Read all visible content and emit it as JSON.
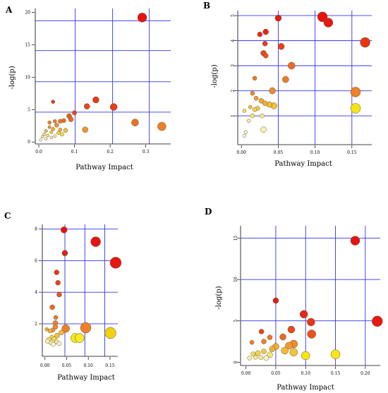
{
  "chart_data": [
    {
      "panel": "A",
      "type": "scatter",
      "xlabel": "Pathway Impact",
      "ylabel": "-log(p)",
      "xlim": [
        -0.01,
        0.37
      ],
      "ylim": [
        -0.3,
        20.6
      ],
      "xticks": [
        "0.0",
        "0.1",
        "0.2",
        "0.3"
      ],
      "xtick_values": [
        0.0,
        0.1,
        0.2,
        0.3
      ],
      "yticks": [
        "0",
        "5",
        "10",
        "15",
        "20"
      ],
      "ytick_values": [
        0,
        5,
        10,
        15,
        20
      ],
      "vgrid": [
        0.102,
        0.207,
        0.31
      ],
      "hgrid": [
        4.6,
        9.3,
        14.1,
        18.7
      ],
      "grid": true,
      "color_scale": "yellow (low -log(p)) to red (high -log(p))",
      "points": [
        {
          "x": 0.29,
          "y": 19.2,
          "r": 6.5,
          "color": "#e8120f"
        },
        {
          "x": 0.16,
          "y": 6.5,
          "r": 4.5,
          "color": "#e93a12"
        },
        {
          "x": 0.21,
          "y": 5.4,
          "r": 5.0,
          "color": "#ea3d13"
        },
        {
          "x": 0.135,
          "y": 5.5,
          "r": 4.0,
          "color": "#ea4416"
        },
        {
          "x": 0.04,
          "y": 6.2,
          "r": 2.5,
          "color": "#e93a12"
        },
        {
          "x": 0.1,
          "y": 4.5,
          "r": 3.2,
          "color": "#ea4a18"
        },
        {
          "x": 0.085,
          "y": 4.0,
          "r": 3.5,
          "color": "#ec5a1a"
        },
        {
          "x": 0.09,
          "y": 3.5,
          "r": 3.5,
          "color": "#ee661c"
        },
        {
          "x": 0.07,
          "y": 3.3,
          "r": 3.0,
          "color": "#ee6f1d"
        },
        {
          "x": 0.06,
          "y": 3.2,
          "r": 3.0,
          "color": "#ef7220"
        },
        {
          "x": 0.045,
          "y": 3.2,
          "r": 2.5,
          "color": "#ef7a22"
        },
        {
          "x": 0.03,
          "y": 3.0,
          "r": 2.5,
          "color": "#f08024"
        },
        {
          "x": 0.05,
          "y": 2.6,
          "r": 3.0,
          "color": "#f18a26"
        },
        {
          "x": 0.03,
          "y": 2.3,
          "r": 2.2,
          "color": "#f29a28"
        },
        {
          "x": 0.04,
          "y": 2.0,
          "r": 2.5,
          "color": "#f4aa2a"
        },
        {
          "x": 0.06,
          "y": 1.9,
          "r": 2.5,
          "color": "#f5b02c"
        },
        {
          "x": 0.02,
          "y": 1.7,
          "r": 2.2,
          "color": "#f6bb30"
        },
        {
          "x": 0.075,
          "y": 1.8,
          "r": 3.0,
          "color": "#f7c232"
        },
        {
          "x": 0.035,
          "y": 1.5,
          "r": 2.2,
          "color": "#f8cc38"
        },
        {
          "x": 0.055,
          "y": 1.4,
          "r": 2.5,
          "color": "#f9d640"
        },
        {
          "x": 0.065,
          "y": 1.2,
          "r": 2.8,
          "color": "#fae04a"
        },
        {
          "x": 0.015,
          "y": 1.2,
          "r": 2.0,
          "color": "#fbe45a"
        },
        {
          "x": 0.025,
          "y": 1.0,
          "r": 2.0,
          "color": "#fbe86a"
        },
        {
          "x": 0.045,
          "y": 0.9,
          "r": 2.2,
          "color": "#fcec80"
        },
        {
          "x": 0.01,
          "y": 0.8,
          "r": 2.0,
          "color": "#fcef90"
        },
        {
          "x": 0.035,
          "y": 0.7,
          "r": 2.0,
          "color": "#fdf2a8"
        },
        {
          "x": 0.02,
          "y": 0.5,
          "r": 2.0,
          "color": "#fdf5c0"
        },
        {
          "x": 0.005,
          "y": 0.3,
          "r": 1.8,
          "color": "#fef9dc"
        },
        {
          "x": 0.27,
          "y": 3.0,
          "r": 5.0,
          "color": "#ee6f1d"
        },
        {
          "x": 0.345,
          "y": 2.4,
          "r": 6.0,
          "color": "#f08024"
        },
        {
          "x": 0.13,
          "y": 1.9,
          "r": 4.0,
          "color": "#f2962a"
        }
      ]
    },
    {
      "panel": "B",
      "type": "scatter",
      "xlabel": "Pathway Impact",
      "ylabel": "-log(p)",
      "xlim": [
        -0.005,
        0.177
      ],
      "ylim": [
        -0.15,
        5.2
      ],
      "xticks": [
        "0.00",
        "0.05",
        "0.10",
        "0.15"
      ],
      "xtick_values": [
        0.0,
        0.05,
        0.1,
        0.15
      ],
      "yticks": [
        "1",
        "2",
        "3",
        "4",
        "5"
      ],
      "ytick_values": [
        1,
        2,
        3,
        4,
        5
      ],
      "vgrid": [
        0.05,
        0.1,
        0.15
      ],
      "hgrid": [
        1,
        2,
        3,
        4,
        5
      ],
      "grid": true,
      "color_scale": "yellow (low -log(p)) to red (high -log(p))",
      "points": [
        {
          "x": 0.11,
          "y": 4.95,
          "r": 7.0,
          "color": "#e8120f"
        },
        {
          "x": 0.118,
          "y": 4.72,
          "r": 6.5,
          "color": "#e81a10"
        },
        {
          "x": 0.05,
          "y": 4.9,
          "r": 4.5,
          "color": "#e81a10"
        },
        {
          "x": 0.168,
          "y": 3.93,
          "r": 7.0,
          "color": "#ea3512"
        },
        {
          "x": 0.033,
          "y": 4.35,
          "r": 4.0,
          "color": "#e92712"
        },
        {
          "x": 0.025,
          "y": 4.25,
          "r": 3.5,
          "color": "#e92c12"
        },
        {
          "x": 0.032,
          "y": 3.88,
          "r": 3.5,
          "color": "#ea3913"
        },
        {
          "x": 0.054,
          "y": 3.77,
          "r": 4.5,
          "color": "#eb4215"
        },
        {
          "x": 0.03,
          "y": 3.5,
          "r": 4.0,
          "color": "#eb4a17"
        },
        {
          "x": 0.033,
          "y": 3.4,
          "r": 3.5,
          "color": "#ec5218"
        },
        {
          "x": 0.068,
          "y": 3.0,
          "r": 5.0,
          "color": "#ee6a1c"
        },
        {
          "x": 0.06,
          "y": 2.45,
          "r": 4.5,
          "color": "#ef7a21"
        },
        {
          "x": 0.018,
          "y": 2.5,
          "r": 3.0,
          "color": "#ef7a21"
        },
        {
          "x": 0.042,
          "y": 2.0,
          "r": 4.5,
          "color": "#f18a26"
        },
        {
          "x": 0.155,
          "y": 1.95,
          "r": 7.0,
          "color": "#f08024"
        },
        {
          "x": 0.015,
          "y": 1.9,
          "r": 3.0,
          "color": "#f18a26"
        },
        {
          "x": 0.02,
          "y": 1.7,
          "r": 3.0,
          "color": "#f29a28"
        },
        {
          "x": 0.027,
          "y": 1.6,
          "r": 3.5,
          "color": "#f4aa2a"
        },
        {
          "x": 0.032,
          "y": 1.5,
          "r": 3.5,
          "color": "#f5b02c"
        },
        {
          "x": 0.038,
          "y": 1.45,
          "r": 4.0,
          "color": "#f6bb30"
        },
        {
          "x": 0.044,
          "y": 1.4,
          "r": 4.5,
          "color": "#f7c232"
        },
        {
          "x": 0.012,
          "y": 1.35,
          "r": 2.5,
          "color": "#f7c232"
        },
        {
          "x": 0.022,
          "y": 1.3,
          "r": 3.0,
          "color": "#f8cc38"
        },
        {
          "x": 0.018,
          "y": 1.25,
          "r": 3.0,
          "color": "#f9d640"
        },
        {
          "x": 0.155,
          "y": 1.3,
          "r": 7.0,
          "color": "#f5e411"
        },
        {
          "x": 0.004,
          "y": 1.2,
          "r": 2.5,
          "color": "#fae04a"
        },
        {
          "x": 0.015,
          "y": 1.0,
          "r": 3.0,
          "color": "#fbe86a"
        },
        {
          "x": 0.028,
          "y": 1.0,
          "r": 3.0,
          "color": "#fcec80"
        },
        {
          "x": 0.01,
          "y": 0.8,
          "r": 2.5,
          "color": "#fcef90"
        },
        {
          "x": 0.03,
          "y": 0.45,
          "r": 4.0,
          "color": "#fdf2a8"
        },
        {
          "x": 0.006,
          "y": 0.35,
          "r": 2.5,
          "color": "#fdf5c0"
        },
        {
          "x": 0.004,
          "y": 0.2,
          "r": 2.5,
          "color": "#fef9dc"
        }
      ]
    },
    {
      "panel": "C",
      "type": "scatter",
      "xlabel": "Pathway Impact",
      "ylabel": "-log(p)",
      "xlim": [
        -0.006,
        0.168
      ],
      "ylim": [
        -0.06,
        8.3
      ],
      "xticks": [
        "0.00",
        "0.05",
        "0.10",
        "0.15"
      ],
      "xtick_values": [
        0.0,
        0.05,
        0.1,
        0.15
      ],
      "yticks": [
        "2",
        "4",
        "6",
        "8"
      ],
      "ytick_values": [
        2,
        4,
        6,
        8
      ],
      "vgrid": [
        0.046,
        0.092,
        0.138
      ],
      "hgrid": [
        2,
        4,
        6,
        8
      ],
      "grid": true,
      "color_scale": "yellow (low -log(p)) to red (high -log(p))",
      "points": [
        {
          "x": 0.044,
          "y": 7.95,
          "r": 4.5,
          "color": "#e8120f"
        },
        {
          "x": 0.117,
          "y": 7.2,
          "r": 7.0,
          "color": "#e8120f"
        },
        {
          "x": 0.163,
          "y": 5.87,
          "r": 8.0,
          "color": "#e8180f"
        },
        {
          "x": 0.046,
          "y": 6.48,
          "r": 4.0,
          "color": "#e91d10"
        },
        {
          "x": 0.027,
          "y": 5.26,
          "r": 3.5,
          "color": "#ea3512"
        },
        {
          "x": 0.03,
          "y": 4.6,
          "r": 3.5,
          "color": "#eb4215"
        },
        {
          "x": 0.033,
          "y": 3.85,
          "r": 3.5,
          "color": "#ec5218"
        },
        {
          "x": 0.017,
          "y": 3.05,
          "r": 3.5,
          "color": "#ee6a1c"
        },
        {
          "x": 0.025,
          "y": 2.4,
          "r": 3.0,
          "color": "#ef7a21"
        },
        {
          "x": 0.024,
          "y": 2.05,
          "r": 3.5,
          "color": "#f08024"
        },
        {
          "x": 0.024,
          "y": 1.8,
          "r": 3.5,
          "color": "#f18a26"
        },
        {
          "x": 0.048,
          "y": 1.7,
          "r": 5.5,
          "color": "#f08024"
        },
        {
          "x": 0.094,
          "y": 1.75,
          "r": 7.5,
          "color": "#f08024"
        },
        {
          "x": 0.018,
          "y": 1.6,
          "r": 3.0,
          "color": "#f29a28"
        },
        {
          "x": 0.004,
          "y": 1.65,
          "r": 2.5,
          "color": "#f4aa2a"
        },
        {
          "x": 0.012,
          "y": 1.55,
          "r": 3.0,
          "color": "#f5b02c"
        },
        {
          "x": 0.038,
          "y": 1.45,
          "r": 3.5,
          "color": "#f6bb30"
        },
        {
          "x": 0.151,
          "y": 1.42,
          "r": 8.0,
          "color": "#f1d010"
        },
        {
          "x": 0.07,
          "y": 1.1,
          "r": 6.5,
          "color": "#f8e814"
        },
        {
          "x": 0.08,
          "y": 1.1,
          "r": 6.5,
          "color": "#f9ea24"
        },
        {
          "x": 0.028,
          "y": 1.25,
          "r": 3.5,
          "color": "#f7c232"
        },
        {
          "x": 0.016,
          "y": 1.15,
          "r": 3.0,
          "color": "#f9d640"
        },
        {
          "x": 0.021,
          "y": 1.05,
          "r": 3.0,
          "color": "#fae04a"
        },
        {
          "x": 0.009,
          "y": 1.0,
          "r": 3.0,
          "color": "#fbe86a"
        },
        {
          "x": 0.027,
          "y": 0.85,
          "r": 3.0,
          "color": "#fcec80"
        },
        {
          "x": 0.014,
          "y": 0.8,
          "r": 3.0,
          "color": "#fcef90"
        },
        {
          "x": 0.006,
          "y": 0.9,
          "r": 3.0,
          "color": "#fdf2a8"
        },
        {
          "x": 0.033,
          "y": 0.75,
          "r": 3.0,
          "color": "#fdf5c0"
        },
        {
          "x": 0.019,
          "y": 0.7,
          "r": 3.0,
          "color": "#fef9dc"
        }
      ]
    },
    {
      "panel": "D",
      "type": "scatter",
      "xlabel": "Pathway Impact",
      "ylabel": "-log(p)",
      "xlim": [
        -0.009,
        0.225
      ],
      "ylim": [
        -0.4,
        16.5
      ],
      "xticks": [
        "0.00",
        "0.05",
        "0.10",
        "0.15",
        "0.20"
      ],
      "xtick_values": [
        0.0,
        0.05,
        0.1,
        0.15,
        0.2
      ],
      "yticks": [
        "0",
        "5",
        "10",
        "15"
      ],
      "ytick_values": [
        0,
        5,
        10,
        15
      ],
      "vgrid": [
        0.05,
        0.1,
        0.15,
        0.2
      ],
      "hgrid": [
        5,
        10,
        15
      ],
      "grid": true,
      "color_scale": "yellow (low -log(p)) to red (high -log(p))",
      "points": [
        {
          "x": 0.183,
          "y": 14.7,
          "r": 6.5,
          "color": "#e8120f"
        },
        {
          "x": 0.22,
          "y": 4.95,
          "r": 7.5,
          "color": "#e8180f"
        },
        {
          "x": 0.05,
          "y": 7.45,
          "r": 4.0,
          "color": "#e81a10"
        },
        {
          "x": 0.097,
          "y": 5.8,
          "r": 5.5,
          "color": "#e92712"
        },
        {
          "x": 0.109,
          "y": 4.85,
          "r": 5.5,
          "color": "#ea3512"
        },
        {
          "x": 0.026,
          "y": 3.7,
          "r": 3.5,
          "color": "#eb4215"
        },
        {
          "x": 0.076,
          "y": 3.95,
          "r": 5.0,
          "color": "#eb4a17"
        },
        {
          "x": 0.11,
          "y": 3.4,
          "r": 6.0,
          "color": "#ec5218"
        },
        {
          "x": 0.062,
          "y": 3.05,
          "r": 4.5,
          "color": "#ee6a1c"
        },
        {
          "x": 0.04,
          "y": 3.0,
          "r": 3.5,
          "color": "#ef7a21"
        },
        {
          "x": 0.03,
          "y": 2.5,
          "r": 3.5,
          "color": "#f08024"
        },
        {
          "x": 0.08,
          "y": 2.2,
          "r": 5.5,
          "color": "#f18a26"
        },
        {
          "x": 0.072,
          "y": 2.0,
          "r": 5.0,
          "color": "#f29a28"
        },
        {
          "x": 0.05,
          "y": 1.9,
          "r": 4.5,
          "color": "#f4aa2a"
        },
        {
          "x": 0.044,
          "y": 1.6,
          "r": 4.0,
          "color": "#f5b02c"
        },
        {
          "x": 0.065,
          "y": 1.4,
          "r": 5.0,
          "color": "#f6bb30"
        },
        {
          "x": 0.08,
          "y": 1.2,
          "r": 5.5,
          "color": "#f7c232"
        },
        {
          "x": 0.03,
          "y": 1.3,
          "r": 3.5,
          "color": "#f8cc38"
        },
        {
          "x": 0.02,
          "y": 1.1,
          "r": 3.5,
          "color": "#f9d640"
        },
        {
          "x": 0.012,
          "y": 1.0,
          "r": 3.0,
          "color": "#fae04a"
        },
        {
          "x": 0.04,
          "y": 0.9,
          "r": 4.0,
          "color": "#fbe86a"
        },
        {
          "x": 0.1,
          "y": 0.8,
          "r": 6.0,
          "color": "#fae411"
        },
        {
          "x": 0.15,
          "y": 0.95,
          "r": 6.5,
          "color": "#f9e613"
        },
        {
          "x": 0.016,
          "y": 0.6,
          "r": 3.0,
          "color": "#fcec80"
        },
        {
          "x": 0.025,
          "y": 0.55,
          "r": 3.0,
          "color": "#fcef90"
        },
        {
          "x": 0.006,
          "y": 0.5,
          "r": 3.0,
          "color": "#fdf2a8"
        },
        {
          "x": 0.034,
          "y": 0.5,
          "r": 3.5,
          "color": "#fdf5c0"
        },
        {
          "x": 0.01,
          "y": 2.4,
          "r": 3.0,
          "color": "#f08024"
        }
      ]
    }
  ]
}
